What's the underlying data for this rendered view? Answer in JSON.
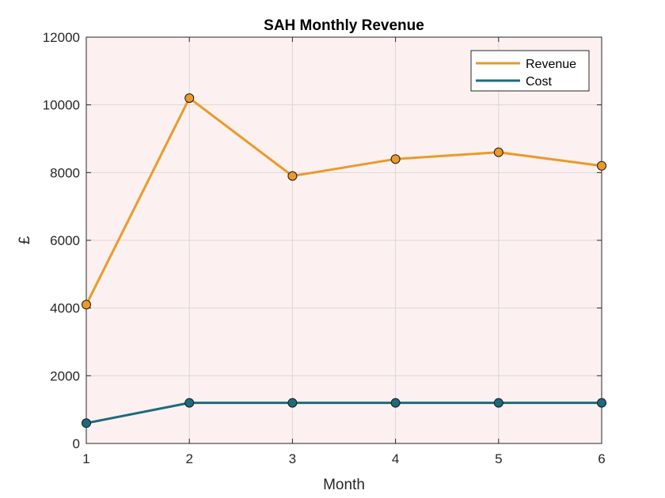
{
  "chart_data": {
    "type": "line",
    "title": "SAH Monthly Revenue",
    "xlabel": "Month",
    "ylabel": "£",
    "x": [
      1,
      2,
      3,
      4,
      5,
      6
    ],
    "xlim": [
      1,
      6
    ],
    "ylim": [
      0,
      12000
    ],
    "xticks": [
      1,
      2,
      3,
      4,
      5,
      6
    ],
    "yticks": [
      0,
      2000,
      4000,
      6000,
      8000,
      10000,
      12000
    ],
    "grid": true,
    "legend_position": "top-right",
    "plot_background": "#fcf1f0",
    "series": [
      {
        "name": "Revenue",
        "color": "#ea9a2a",
        "marker_fill": "#ea9a2a",
        "values": [
          4100,
          10200,
          7900,
          8400,
          8600,
          8200
        ]
      },
      {
        "name": "Cost",
        "color": "#1d6a7d",
        "marker_fill": "#1d6a7d",
        "values": [
          600,
          1200,
          1200,
          1200,
          1200,
          1200
        ]
      }
    ]
  }
}
